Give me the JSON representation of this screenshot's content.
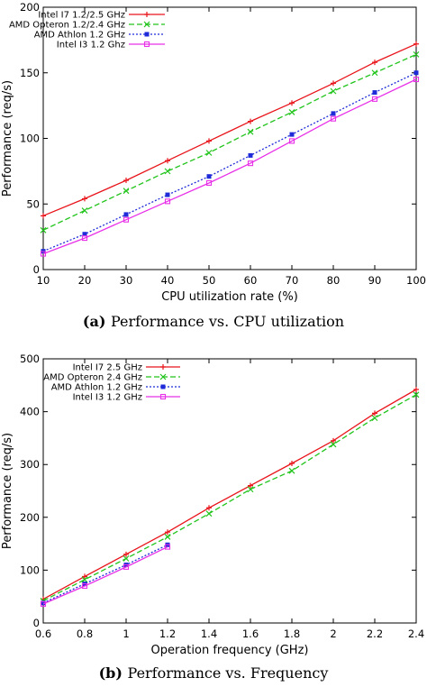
{
  "chart_data": [
    {
      "type": "line",
      "caption_tag": "(a)",
      "caption_text": "Performance vs. CPU utilization",
      "xlabel": "CPU utilization rate (%)",
      "ylabel": "Performance (req/s)",
      "xlim": [
        10,
        100
      ],
      "ylim": [
        0,
        200
      ],
      "xticks": [
        "10",
        "20",
        "30",
        "40",
        "50",
        "60",
        "70",
        "80",
        "90",
        "100"
      ],
      "yticks": [
        "0",
        "50",
        "100",
        "150",
        "200"
      ],
      "legend_position": "top-right",
      "x": [
        10,
        20,
        30,
        40,
        50,
        60,
        70,
        80,
        90,
        100
      ],
      "series": [
        {
          "name": "Intel I7 1.2/2.5 GHz",
          "color": "#e8141a",
          "dash": "",
          "marker": "plus",
          "values": [
            41,
            54,
            68,
            83,
            98,
            113,
            127,
            142,
            158,
            172
          ]
        },
        {
          "name": "AMD Opteron 1.2/2.4 GHz",
          "color": "#21c41b",
          "dash": "6,3",
          "marker": "x",
          "values": [
            30,
            45,
            60,
            75,
            89,
            105,
            120,
            136,
            150,
            164
          ]
        },
        {
          "name": "AMD Athlon 1.2 GHz",
          "color": "#1f2bd8",
          "dash": "2,2",
          "marker": "square-filled",
          "values": [
            14,
            27,
            42,
            57,
            71,
            87,
            103,
            119,
            135,
            150
          ]
        },
        {
          "name": "Intel I3 1.2 Ghz",
          "color": "#e830e8",
          "dash": "",
          "marker": "square-open",
          "values": [
            12,
            24,
            38,
            52,
            66,
            81,
            98,
            115,
            130,
            145
          ]
        }
      ]
    },
    {
      "type": "line",
      "caption_tag": "(b)",
      "caption_text": "Performance vs. Frequency",
      "xlabel": "Operation frequency (GHz)",
      "ylabel": "Performance (req/s)",
      "xlim": [
        0.6,
        2.4
      ],
      "ylim": [
        0,
        500
      ],
      "xticks": [
        "0.6",
        "0.8",
        "1",
        "1.2",
        "1.4",
        "1.6",
        "1.8",
        "2",
        "2.2",
        "2.4"
      ],
      "yticks": [
        "0",
        "100",
        "200",
        "300",
        "400",
        "500"
      ],
      "legend_position": "top-left",
      "series": [
        {
          "name": "Intel I7 2.5 GHz",
          "color": "#e8141a",
          "dash": "",
          "marker": "plus",
          "x": [
            0.6,
            0.8,
            1.0,
            1.2,
            1.4,
            1.6,
            1.8,
            2.0,
            2.2,
            2.4
          ],
          "values": [
            45,
            88,
            130,
            172,
            218,
            260,
            302,
            345,
            397,
            442
          ]
        },
        {
          "name": "AMD Opteron 2.4 GHz",
          "color": "#21c41b",
          "dash": "6,3",
          "marker": "x",
          "x": [
            0.6,
            0.8,
            1.0,
            1.2,
            1.4,
            1.6,
            1.8,
            2.0,
            2.2,
            2.4
          ],
          "values": [
            42,
            82,
            122,
            163,
            207,
            253,
            288,
            338,
            388,
            432
          ]
        },
        {
          "name": "AMD Athlon 1.2 GHz",
          "color": "#1f2bd8",
          "dash": "2,2",
          "marker": "square-filled",
          "x": [
            0.6,
            0.8,
            1.0,
            1.2
          ],
          "values": [
            38,
            74,
            110,
            148
          ]
        },
        {
          "name": "Intel I3 1.2 GHz",
          "color": "#e830e8",
          "dash": "",
          "marker": "square-open",
          "x": [
            0.6,
            0.8,
            1.0,
            1.2
          ],
          "values": [
            36,
            70,
            106,
            144
          ]
        }
      ]
    }
  ]
}
